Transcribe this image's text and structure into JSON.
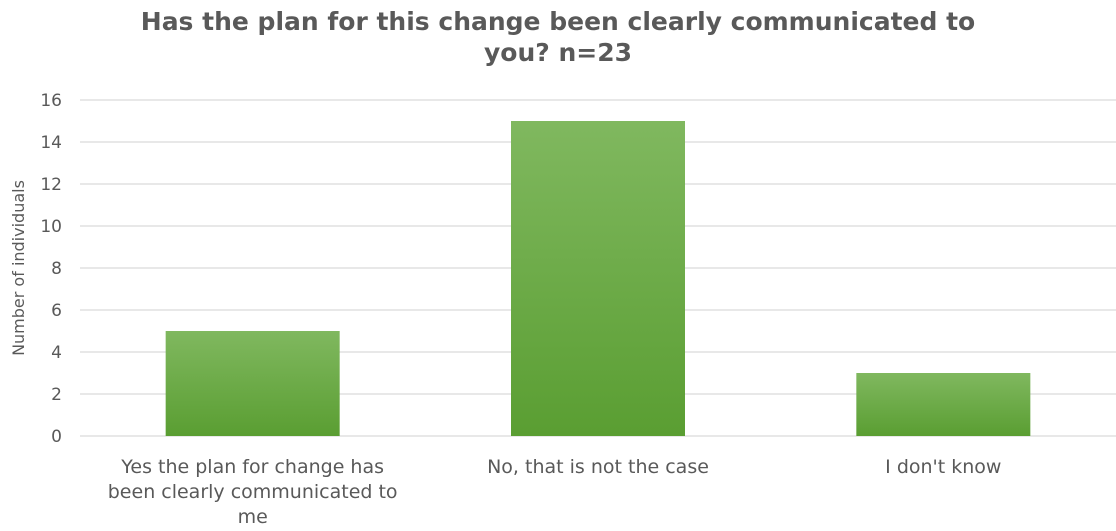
{
  "chart_data": {
    "type": "bar",
    "title_lines": [
      "Has the plan for this change been clearly communicated to",
      "you? n=23"
    ],
    "title": "Has the plan for this change been clearly communicated to you? n=23",
    "xlabel": "",
    "ylabel": "Number of individuals",
    "categories": [
      "Yes the plan for change has been clearly communicated to me",
      "No, that is not the case",
      "I don't know"
    ],
    "category_lines": [
      [
        "Yes the plan for change has",
        "been clearly communicated to",
        "me"
      ],
      [
        "No, that is not the case"
      ],
      [
        "I don't know"
      ]
    ],
    "values": [
      5,
      15,
      3
    ],
    "ylim": [
      0,
      16
    ],
    "yticks": [
      0,
      2,
      4,
      6,
      8,
      10,
      12,
      14,
      16
    ],
    "grid": true,
    "legend": "none",
    "colors": {
      "bar_top": "#80b85f",
      "bar_bottom": "#5a9e32",
      "grid": "#d9d9d9",
      "text": "#595959"
    }
  }
}
